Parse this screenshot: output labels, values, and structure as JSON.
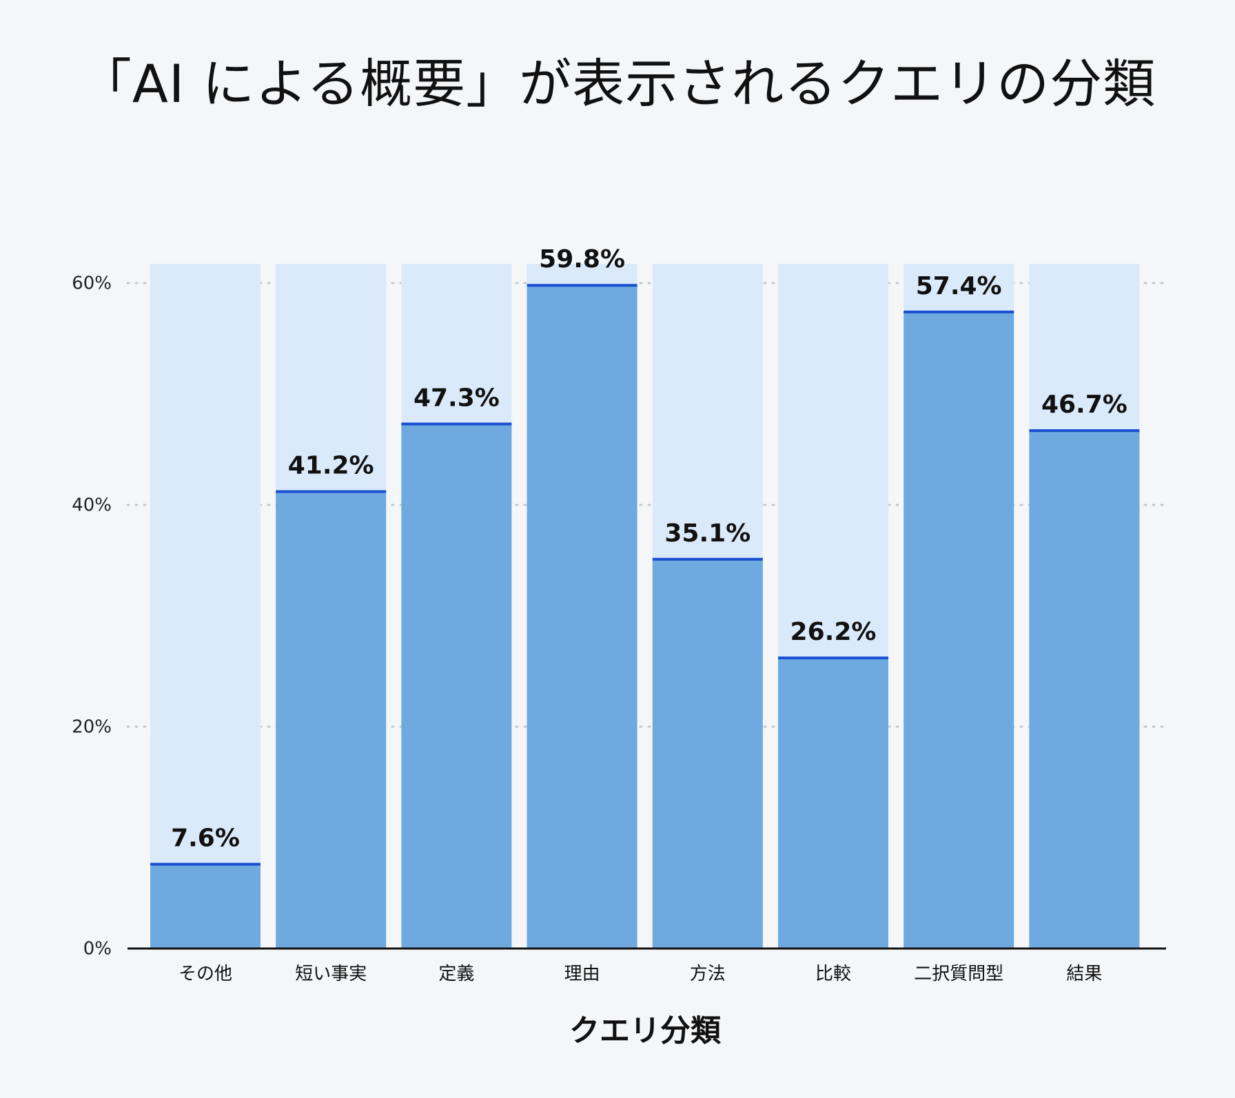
{
  "chart_data": {
    "type": "bar",
    "title": "「AI による概要」が表示されるクエリの分類",
    "xlabel": "クエリ分類",
    "ylabel": "",
    "categories": [
      "その他",
      "短い事実",
      "定義",
      "理由",
      "方法",
      "比較",
      "二択質問型",
      "結果"
    ],
    "values": [
      7.6,
      41.2,
      47.3,
      59.8,
      35.1,
      26.2,
      57.4,
      46.7
    ],
    "value_labels": [
      "7.6%",
      "41.2%",
      "47.3%",
      "59.8%",
      "35.1%",
      "26.2%",
      "57.4%",
      "46.7%"
    ],
    "ylim": [
      0,
      60
    ],
    "yticks": [
      0,
      20,
      40,
      60
    ],
    "ytick_labels": [
      "0%",
      "20%",
      "40%",
      "60%"
    ],
    "grid": "horizontal-dotted",
    "colors": {
      "bar": "#6ea9df",
      "bar_background": "#daeafa",
      "bar_top_line": "#1a4fd1",
      "grid": "#c4c8cc",
      "axis": "#111111",
      "background": "#f5f6f8"
    }
  }
}
